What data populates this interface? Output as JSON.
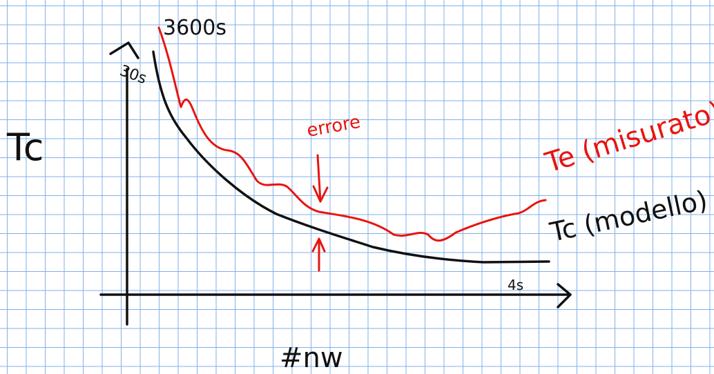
{
  "labels": {
    "y_axis": "Tc",
    "y_top_measured": "3600s",
    "y_top_model": "30s",
    "annotation": "errore",
    "measured_curve": "Te (misurato)",
    "model_curve": "Tc (modello)",
    "x_end": "4s",
    "x_axis": "#nw"
  }
}
